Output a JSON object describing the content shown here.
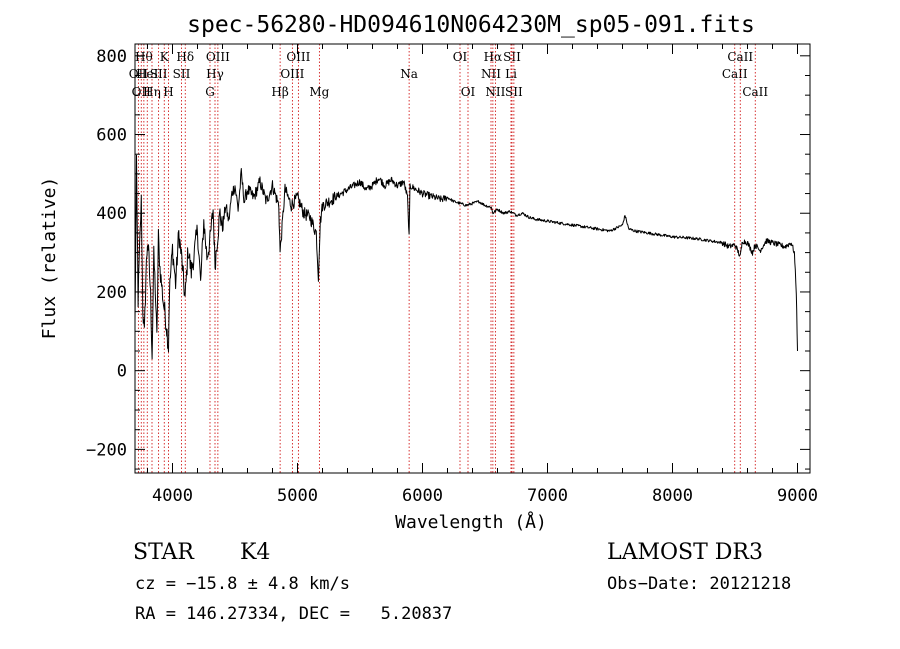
{
  "chart_data": {
    "type": "line",
    "title": "spec-56280-HD094610N064230M_sp05-091.fits",
    "xlabel": "Wavelength (Å)",
    "ylabel": "Flux (relative)",
    "xlim": [
      3700,
      9100
    ],
    "ylim": [
      -260,
      830
    ],
    "xticks": [
      4000,
      5000,
      6000,
      7000,
      8000,
      9000
    ],
    "yticks": [
      -200,
      0,
      200,
      400,
      600,
      800
    ],
    "grid": false,
    "series": [
      {
        "name": "flux",
        "x": [
          3700,
          3712,
          3725,
          3737,
          3750,
          3762,
          3775,
          3787,
          3800,
          3812,
          3825,
          3837,
          3850,
          3862,
          3875,
          3887,
          3900,
          3925,
          3950,
          3968,
          3975,
          4000,
          4025,
          4050,
          4075,
          4101,
          4125,
          4150,
          4175,
          4200,
          4225,
          4250,
          4275,
          4300,
          4325,
          4340,
          4360,
          4380,
          4400,
          4425,
          4450,
          4475,
          4500,
          4525,
          4550,
          4575,
          4600,
          4650,
          4700,
          4750,
          4800,
          4850,
          4861,
          4900,
          4950,
          5000,
          5050,
          5100,
          5150,
          5167,
          5175,
          5183,
          5200,
          5250,
          5300,
          5350,
          5400,
          5450,
          5500,
          5550,
          5600,
          5650,
          5700,
          5750,
          5800,
          5850,
          5880,
          5893,
          5900,
          5950,
          6000,
          6050,
          6100,
          6150,
          6200,
          6250,
          6300,
          6350,
          6400,
          6450,
          6500,
          6550,
          6563,
          6600,
          6650,
          6700,
          6750,
          6800,
          6850,
          6900,
          7000,
          7100,
          7200,
          7300,
          7400,
          7500,
          7600,
          7620,
          7650,
          7700,
          7800,
          7900,
          8000,
          8100,
          8200,
          8300,
          8400,
          8450,
          8500,
          8542,
          8560,
          8600,
          8640,
          8662,
          8700,
          8750,
          8800,
          8850,
          8900,
          8950,
          8975,
          8990,
          9000
        ],
        "values": [
          120,
          520,
          180,
          310,
          430,
          160,
          90,
          240,
          330,
          280,
          190,
          40,
          290,
          210,
          80,
          340,
          260,
          180,
          120,
          60,
          200,
          310,
          220,
          350,
          280,
          180,
          310,
          250,
          300,
          360,
          220,
          380,
          290,
          330,
          410,
          270,
          340,
          400,
          360,
          420,
          380,
          450,
          470,
          410,
          500,
          430,
          460,
          440,
          480,
          430,
          470,
          420,
          300,
          460,
          420,
          440,
          400,
          390,
          350,
          240,
          320,
          380,
          420,
          430,
          440,
          450,
          460,
          470,
          480,
          460,
          470,
          490,
          470,
          485,
          470,
          480,
          440,
          340,
          470,
          460,
          450,
          445,
          440,
          435,
          440,
          430,
          425,
          420,
          425,
          430,
          420,
          415,
          400,
          410,
          400,
          405,
          395,
          400,
          390,
          385,
          380,
          375,
          370,
          365,
          360,
          355,
          370,
          395,
          360,
          355,
          350,
          345,
          340,
          338,
          335,
          330,
          325,
          315,
          320,
          290,
          330,
          325,
          300,
          320,
          305,
          330,
          325,
          320,
          315,
          325,
          300,
          200,
          50
        ]
      }
    ],
    "lines": [
      {
        "wl": 3727,
        "label": "OII",
        "row": 2
      },
      {
        "wl": 3750,
        "label": "OII",
        "row": 3
      },
      {
        "wl": 3771,
        "label": "Hθ",
        "row": 1
      },
      {
        "wl": 3798,
        "label": "HeI",
        "row": 2
      },
      {
        "wl": 3836,
        "label": "Hη",
        "row": 3
      },
      {
        "wl": 3889,
        "label": "SII",
        "row": 2
      },
      {
        "wl": 3934,
        "label": "K",
        "row": 1
      },
      {
        "wl": 3968,
        "label": "H",
        "row": 3
      },
      {
        "wl": 4072,
        "label": "SII",
        "row": 2
      },
      {
        "wl": 4102,
        "label": "Hδ",
        "row": 1
      },
      {
        "wl": 4300,
        "label": "G",
        "row": 3
      },
      {
        "wl": 4340,
        "label": "Hγ",
        "row": 2
      },
      {
        "wl": 4363,
        "label": "OIII",
        "row": 1
      },
      {
        "wl": 4861,
        "label": "Hβ",
        "row": 3
      },
      {
        "wl": 4959,
        "label": "OIII",
        "row": 2
      },
      {
        "wl": 5007,
        "label": "OIII",
        "row": 1
      },
      {
        "wl": 5175,
        "label": "Mg",
        "row": 3
      },
      {
        "wl": 5893,
        "label": "Na",
        "row": 2
      },
      {
        "wl": 6300,
        "label": "OI",
        "row": 1
      },
      {
        "wl": 6364,
        "label": "OI",
        "row": 3
      },
      {
        "wl": 6548,
        "label": "NII",
        "row": 2
      },
      {
        "wl": 6563,
        "label": "Hα",
        "row": 1
      },
      {
        "wl": 6583,
        "label": "NII",
        "row": 3
      },
      {
        "wl": 6708,
        "label": "Li",
        "row": 2
      },
      {
        "wl": 6716,
        "label": "SII",
        "row": 1
      },
      {
        "wl": 6731,
        "label": "SII",
        "row": 3
      },
      {
        "wl": 8498,
        "label": "CaII",
        "row": 2
      },
      {
        "wl": 8542,
        "label": "CaII",
        "row": 1
      },
      {
        "wl": 8662,
        "label": "CaII",
        "row": 3
      }
    ]
  },
  "info": {
    "class_label": "STAR",
    "subclass": "K4",
    "survey": "LAMOST DR3",
    "redshift": "cz = −15.8 ± 4.8 km/s",
    "obs_date": "Obs−Date: 20121218",
    "coords": "RA = 146.27334, DEC =   5.20837"
  },
  "colors": {
    "axis": "#000000",
    "spectrum": "#000000",
    "line_marker": "#cc0000"
  }
}
